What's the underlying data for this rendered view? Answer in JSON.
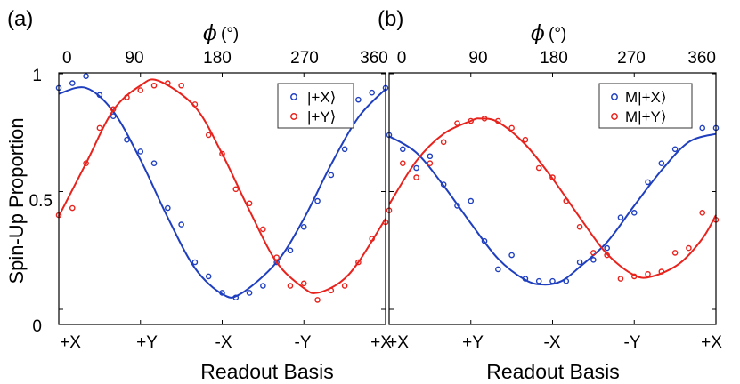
{
  "figure": {
    "ylabel": "Spin-Up Proportion",
    "colors": {
      "blue": "#1f3fbf",
      "red": "#e8221c"
    }
  },
  "chart_data": [
    {
      "type": "scatter",
      "panel_label": "(a)",
      "top_axis_label": "ϕ",
      "top_axis_unit": "(°)",
      "top_ticks": [
        "0",
        "90",
        "180",
        "270",
        "360"
      ],
      "xlabel": "Readout Basis",
      "x_ticks": [
        "+X",
        "+Y",
        "-X",
        "-Y",
        "+X"
      ],
      "xlim": [
        0,
        360
      ],
      "ylim": [
        0,
        1
      ],
      "y_ticks": [
        "0",
        "0.5",
        "1"
      ],
      "legend": [
        "|+X⟩",
        "|+Y⟩"
      ],
      "legend_position": "top-right",
      "series": [
        {
          "name": "|+X⟩",
          "color": "blue",
          "points": [
            [
              0,
              0.94
            ],
            [
              15,
              0.96
            ],
            [
              30,
              0.99
            ],
            [
              45,
              0.91
            ],
            [
              60,
              0.82
            ],
            [
              75,
              0.72
            ],
            [
              90,
              0.67
            ],
            [
              105,
              0.62
            ],
            [
              120,
              0.43
            ],
            [
              135,
              0.36
            ],
            [
              150,
              0.2
            ],
            [
              165,
              0.14
            ],
            [
              180,
              0.07
            ],
            [
              195,
              0.05
            ],
            [
              210,
              0.07
            ],
            [
              225,
              0.1
            ],
            [
              240,
              0.2
            ],
            [
              255,
              0.25
            ],
            [
              270,
              0.35
            ],
            [
              285,
              0.46
            ],
            [
              300,
              0.57
            ],
            [
              315,
              0.68
            ],
            [
              330,
              0.89
            ],
            [
              345,
              0.92
            ],
            [
              360,
              0.94
            ]
          ],
          "fit": [
            [
              0,
              0.915
            ],
            [
              30,
              0.94
            ],
            [
              60,
              0.84
            ],
            [
              90,
              0.635
            ],
            [
              120,
              0.39
            ],
            [
              150,
              0.175
            ],
            [
              180,
              0.065
            ],
            [
              200,
              0.065
            ],
            [
              240,
              0.2
            ],
            [
              270,
              0.385
            ],
            [
              300,
              0.615
            ],
            [
              330,
              0.815
            ],
            [
              360,
              0.935
            ]
          ]
        },
        {
          "name": "|+Y⟩",
          "color": "red",
          "points": [
            [
              0,
              0.4
            ],
            [
              15,
              0.43
            ],
            [
              30,
              0.62
            ],
            [
              45,
              0.77
            ],
            [
              60,
              0.85
            ],
            [
              75,
              0.9
            ],
            [
              90,
              0.93
            ],
            [
              105,
              0.95
            ],
            [
              120,
              0.96
            ],
            [
              135,
              0.95
            ],
            [
              150,
              0.87
            ],
            [
              165,
              0.74
            ],
            [
              180,
              0.66
            ],
            [
              195,
              0.51
            ],
            [
              210,
              0.45
            ],
            [
              225,
              0.34
            ],
            [
              240,
              0.22
            ],
            [
              255,
              0.1
            ],
            [
              270,
              0.11
            ],
            [
              285,
              0.04
            ],
            [
              300,
              0.08
            ],
            [
              315,
              0.1
            ],
            [
              330,
              0.2
            ],
            [
              345,
              0.3
            ],
            [
              360,
              0.37
            ]
          ],
          "fit": [
            [
              0,
              0.395
            ],
            [
              30,
              0.62
            ],
            [
              60,
              0.845
            ],
            [
              90,
              0.95
            ],
            [
              110,
              0.97
            ],
            [
              150,
              0.86
            ],
            [
              180,
              0.66
            ],
            [
              210,
              0.42
            ],
            [
              240,
              0.2
            ],
            [
              270,
              0.09
            ],
            [
              285,
              0.07
            ],
            [
              310,
              0.115
            ],
            [
              330,
              0.2
            ],
            [
              360,
              0.385
            ]
          ]
        }
      ]
    },
    {
      "type": "scatter",
      "panel_label": "(b)",
      "top_axis_label": "ϕ",
      "top_axis_unit": "(°)",
      "top_ticks": [
        "0",
        "90",
        "180",
        "270",
        "360"
      ],
      "xlabel": "Readout Basis",
      "x_ticks": [
        "+X",
        "+Y",
        "-X",
        "-Y",
        "+X"
      ],
      "xlim": [
        0,
        360
      ],
      "ylim": [
        0,
        1
      ],
      "legend": [
        "M|+X⟩",
        "M|+Y⟩"
      ],
      "legend_position": "top-right",
      "series": [
        {
          "name": "M|+X⟩",
          "color": "blue",
          "points": [
            [
              0,
              0.74
            ],
            [
              15,
              0.68
            ],
            [
              30,
              0.6
            ],
            [
              45,
              0.65
            ],
            [
              60,
              0.53
            ],
            [
              75,
              0.44
            ],
            [
              90,
              0.46
            ],
            [
              105,
              0.29
            ],
            [
              120,
              0.17
            ],
            [
              135,
              0.23
            ],
            [
              150,
              0.13
            ],
            [
              165,
              0.12
            ],
            [
              180,
              0.12
            ],
            [
              195,
              0.12
            ],
            [
              210,
              0.2
            ],
            [
              225,
              0.21
            ],
            [
              240,
              0.26
            ],
            [
              255,
              0.39
            ],
            [
              270,
              0.41
            ],
            [
              285,
              0.54
            ],
            [
              300,
              0.62
            ],
            [
              315,
              0.68
            ],
            [
              330,
              0.8
            ],
            [
              345,
              0.77
            ],
            [
              360,
              0.77
            ]
          ],
          "fit": [
            [
              0,
              0.735
            ],
            [
              30,
              0.665
            ],
            [
              60,
              0.525
            ],
            [
              90,
              0.365
            ],
            [
              120,
              0.215
            ],
            [
              150,
              0.125
            ],
            [
              170,
              0.105
            ],
            [
              190,
              0.12
            ],
            [
              210,
              0.18
            ],
            [
              240,
              0.285
            ],
            [
              270,
              0.44
            ],
            [
              300,
              0.59
            ],
            [
              330,
              0.71
            ],
            [
              360,
              0.745
            ]
          ]
        },
        {
          "name": "M|+Y⟩",
          "color": "red",
          "points": [
            [
              0,
              0.42
            ],
            [
              15,
              0.62
            ],
            [
              30,
              0.56
            ],
            [
              45,
              0.62
            ],
            [
              60,
              0.71
            ],
            [
              75,
              0.79
            ],
            [
              90,
              0.8
            ],
            [
              105,
              0.81
            ],
            [
              120,
              0.8
            ],
            [
              135,
              0.77
            ],
            [
              150,
              0.72
            ],
            [
              165,
              0.6
            ],
            [
              180,
              0.56
            ],
            [
              195,
              0.46
            ],
            [
              210,
              0.35
            ],
            [
              225,
              0.24
            ],
            [
              240,
              0.23
            ],
            [
              255,
              0.13
            ],
            [
              270,
              0.14
            ],
            [
              285,
              0.15
            ],
            [
              300,
              0.16
            ],
            [
              315,
              0.24
            ],
            [
              330,
              0.26
            ],
            [
              345,
              0.41
            ],
            [
              360,
              0.38
            ]
          ],
          "fit": [
            [
              0,
              0.445
            ],
            [
              30,
              0.63
            ],
            [
              60,
              0.745
            ],
            [
              90,
              0.8
            ],
            [
              100,
              0.81
            ],
            [
              120,
              0.795
            ],
            [
              150,
              0.7
            ],
            [
              180,
              0.555
            ],
            [
              210,
              0.39
            ],
            [
              240,
              0.235
            ],
            [
              270,
              0.145
            ],
            [
              290,
              0.14
            ],
            [
              320,
              0.195
            ],
            [
              345,
              0.3
            ],
            [
              360,
              0.4
            ]
          ]
        }
      ]
    }
  ]
}
